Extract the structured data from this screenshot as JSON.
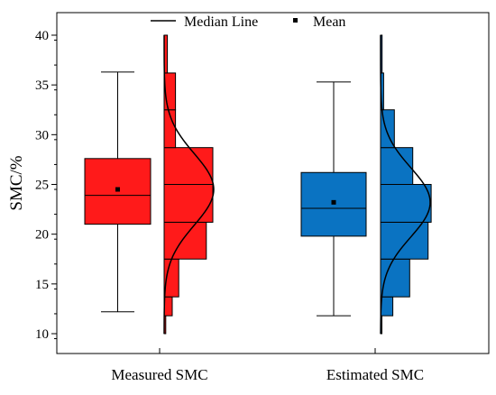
{
  "chart_data": {
    "type": "boxplot",
    "ylabel": "SMC/%",
    "xlabel": "",
    "ylim": [
      9,
      42
    ],
    "yticks": [
      10,
      15,
      20,
      25,
      30,
      35,
      40
    ],
    "legend": {
      "placement": "top",
      "items": [
        {
          "label": "Median Line",
          "symbol": "line"
        },
        {
          "label": "Mean",
          "symbol": "square"
        }
      ]
    },
    "series": [
      {
        "name": "Measured SMC",
        "color": "#ff1a1a",
        "box": {
          "min": 12.2,
          "q1": 21.0,
          "median": 23.9,
          "q3": 27.6,
          "max": 36.3,
          "mean": 24.5
        },
        "histogram": {
          "bin_edges": [
            10.0,
            11.8,
            13.7,
            17.5,
            21.2,
            25.0,
            28.7,
            32.5,
            36.2,
            40.0
          ],
          "counts": [
            0.05,
            0.25,
            0.45,
            1.3,
            1.5,
            1.5,
            0.35,
            0.35,
            0.1
          ]
        },
        "normal_curve": {
          "mean": 24.5,
          "sd": 3.6
        }
      },
      {
        "name": "Estimated SMC",
        "color": "#0a73c2",
        "box": {
          "min": 11.8,
          "q1": 19.8,
          "median": 22.6,
          "q3": 26.2,
          "max": 35.3,
          "mean": 23.2
        },
        "histogram": {
          "bin_edges": [
            10.0,
            11.8,
            13.7,
            17.5,
            21.2,
            25.0,
            28.7,
            32.5,
            36.2,
            40.0
          ],
          "counts": [
            0.02,
            0.4,
            0.95,
            1.55,
            1.65,
            1.05,
            0.45,
            0.1,
            0.05
          ]
        },
        "normal_curve": {
          "mean": 23.2,
          "sd": 3.5
        }
      }
    ]
  }
}
